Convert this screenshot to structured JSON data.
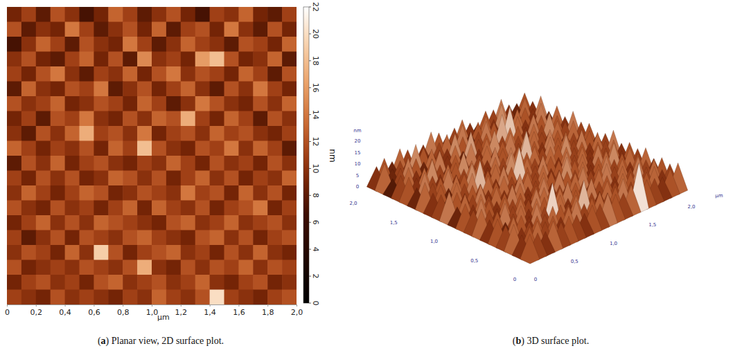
{
  "chart_data": [
    {
      "type": "heatmap",
      "caption": "(a) Planar view, 2D surface plot.",
      "xlabel": "µm",
      "xlim": [
        0,
        2
      ],
      "xticks": [
        0,
        {
          "value": 0.2,
          "label": "0,2"
        },
        {
          "value": 0.4,
          "label": "0,4"
        },
        {
          "value": 0.6,
          "label": "0,6"
        },
        {
          "value": 0.8,
          "label": "0,8"
        },
        {
          "value": 1,
          "label": "1,0"
        },
        {
          "value": 1.2,
          "label": "1,2"
        },
        {
          "value": 1.4,
          "label": "1,4"
        },
        {
          "value": 1.6,
          "label": "1,6"
        },
        {
          "value": 1.8,
          "label": "1,8"
        },
        {
          "value": 2,
          "label": "2,0"
        }
      ],
      "ylim": [
        0,
        2
      ],
      "tick_labels": "x",
      "zlabel": "nm",
      "zlim": [
        0,
        22
      ],
      "zticks": [
        0,
        2,
        4,
        6,
        8,
        10,
        12,
        14,
        16,
        18,
        20,
        22
      ],
      "cells": [
        [
          9,
          11,
          8,
          12,
          10,
          7,
          9,
          13,
          11,
          8,
          10,
          12,
          9,
          7,
          11,
          10,
          13,
          9,
          8,
          11
        ],
        [
          12,
          8,
          10,
          9,
          14,
          11,
          8,
          10,
          12,
          9,
          13,
          8,
          11,
          12,
          9,
          14,
          10,
          8,
          12,
          9
        ],
        [
          7,
          10,
          13,
          11,
          8,
          12,
          10,
          9,
          14,
          11,
          8,
          10,
          13,
          11,
          10,
          8,
          12,
          11,
          9,
          13
        ],
        [
          10,
          12,
          9,
          8,
          11,
          13,
          9,
          12,
          8,
          15,
          10,
          11,
          9,
          16,
          18,
          12,
          9,
          10,
          13,
          8
        ],
        [
          11,
          9,
          12,
          14,
          10,
          8,
          11,
          10,
          13,
          9,
          12,
          14,
          10,
          12,
          11,
          9,
          13,
          11,
          8,
          12
        ],
        [
          8,
          13,
          10,
          9,
          12,
          11,
          14,
          8,
          10,
          12,
          9,
          11,
          13,
          10,
          8,
          12,
          10,
          14,
          11,
          9
        ],
        [
          12,
          10,
          11,
          13,
          9,
          10,
          12,
          11,
          9,
          13,
          11,
          8,
          10,
          14,
          12,
          10,
          9,
          12,
          10,
          13
        ],
        [
          9,
          11,
          8,
          12,
          11,
          14,
          10,
          9,
          12,
          10,
          13,
          12,
          17,
          11,
          9,
          13,
          11,
          8,
          12,
          10
        ],
        [
          10,
          8,
          12,
          10,
          13,
          17,
          11,
          12,
          10,
          14,
          9,
          11,
          12,
          10,
          13,
          11,
          12,
          10,
          9,
          11
        ],
        [
          13,
          11,
          9,
          11,
          10,
          12,
          9,
          13,
          11,
          18,
          12,
          10,
          9,
          12,
          11,
          14,
          10,
          13,
          11,
          8
        ],
        [
          8,
          12,
          10,
          13,
          9,
          11,
          12,
          10,
          9,
          11,
          10,
          13,
          11,
          9,
          12,
          10,
          11,
          9,
          12,
          10
        ],
        [
          11,
          9,
          12,
          10,
          12,
          9,
          10,
          13,
          12,
          10,
          12,
          9,
          11,
          13,
          10,
          12,
          9,
          11,
          10,
          13
        ],
        [
          10,
          13,
          11,
          9,
          11,
          13,
          12,
          9,
          10,
          12,
          11,
          10,
          14,
          11,
          12,
          9,
          13,
          10,
          12,
          9
        ],
        [
          12,
          10,
          9,
          12,
          10,
          11,
          9,
          11,
          13,
          9,
          13,
          11,
          10,
          12,
          9,
          11,
          12,
          14,
          9,
          11
        ],
        [
          9,
          11,
          13,
          10,
          12,
          10,
          13,
          12,
          11,
          10,
          9,
          12,
          13,
          10,
          11,
          13,
          10,
          11,
          12,
          10
        ],
        [
          11,
          8,
          10,
          12,
          9,
          12,
          11,
          10,
          12,
          13,
          11,
          10,
          9,
          12,
          13,
          10,
          12,
          9,
          11,
          12
        ],
        [
          10,
          12,
          11,
          9,
          13,
          10,
          19,
          12,
          9,
          11,
          12,
          13,
          10,
          11,
          9,
          12,
          10,
          13,
          10,
          9
        ],
        [
          12,
          9,
          10,
          11,
          10,
          12,
          11,
          10,
          12,
          17,
          10,
          9,
          12,
          10,
          12,
          11,
          13,
          10,
          12,
          11
        ],
        [
          9,
          11,
          12,
          10,
          11,
          9,
          12,
          13,
          10,
          11,
          12,
          10,
          11,
          13,
          10,
          9,
          11,
          12,
          9,
          10
        ],
        [
          11,
          10,
          9,
          12,
          10,
          11,
          10,
          9,
          11,
          10,
          13,
          11,
          10,
          12,
          20,
          11,
          10,
          9,
          11,
          12
        ]
      ]
    },
    {
      "type": "surface3d",
      "caption": "(b) 3D surface plot.",
      "xlabel": "µm",
      "xlim": [
        0,
        2
      ],
      "xticks": [
        0,
        {
          "value": 0.5,
          "label": "0,5"
        },
        {
          "value": 1,
          "label": "1,0"
        },
        {
          "value": 1.5,
          "label": "1,5"
        },
        {
          "value": 2,
          "label": "2,0"
        }
      ],
      "ylim": [
        0,
        2
      ],
      "yticks": [
        0,
        {
          "value": 0.5,
          "label": "0,5"
        },
        {
          "value": 1,
          "label": "1,0"
        },
        {
          "value": 1.5,
          "label": "1,5"
        },
        {
          "value": 2,
          "label": "2,0"
        }
      ],
      "zlabel": "nm",
      "zlim": [
        0,
        22
      ],
      "zticks": [
        0,
        5,
        10,
        15,
        20
      ]
    }
  ]
}
